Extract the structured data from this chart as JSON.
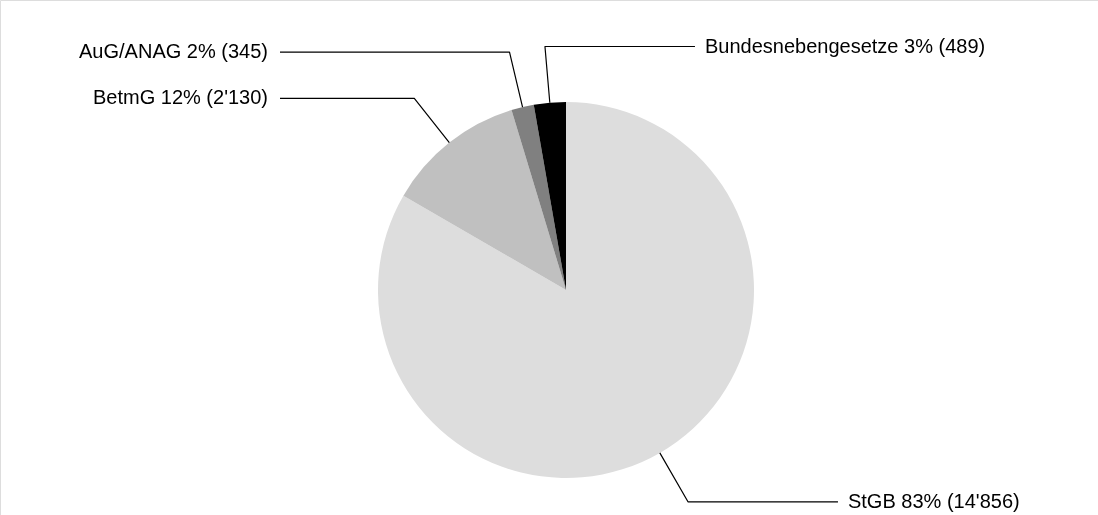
{
  "chart_data": {
    "type": "pie",
    "categories": [
      "StGB",
      "BetmG",
      "AuG/ANAG",
      "Bundesnebengesetze"
    ],
    "values": [
      14856,
      2130,
      345,
      489
    ],
    "value_labels": [
      "83% (14'856)",
      "12% (2'130)",
      "2% (345)",
      "3% (489)"
    ],
    "colors": [
      "#dddddd",
      "#c0c0c0",
      "#808080",
      "#000000"
    ]
  }
}
